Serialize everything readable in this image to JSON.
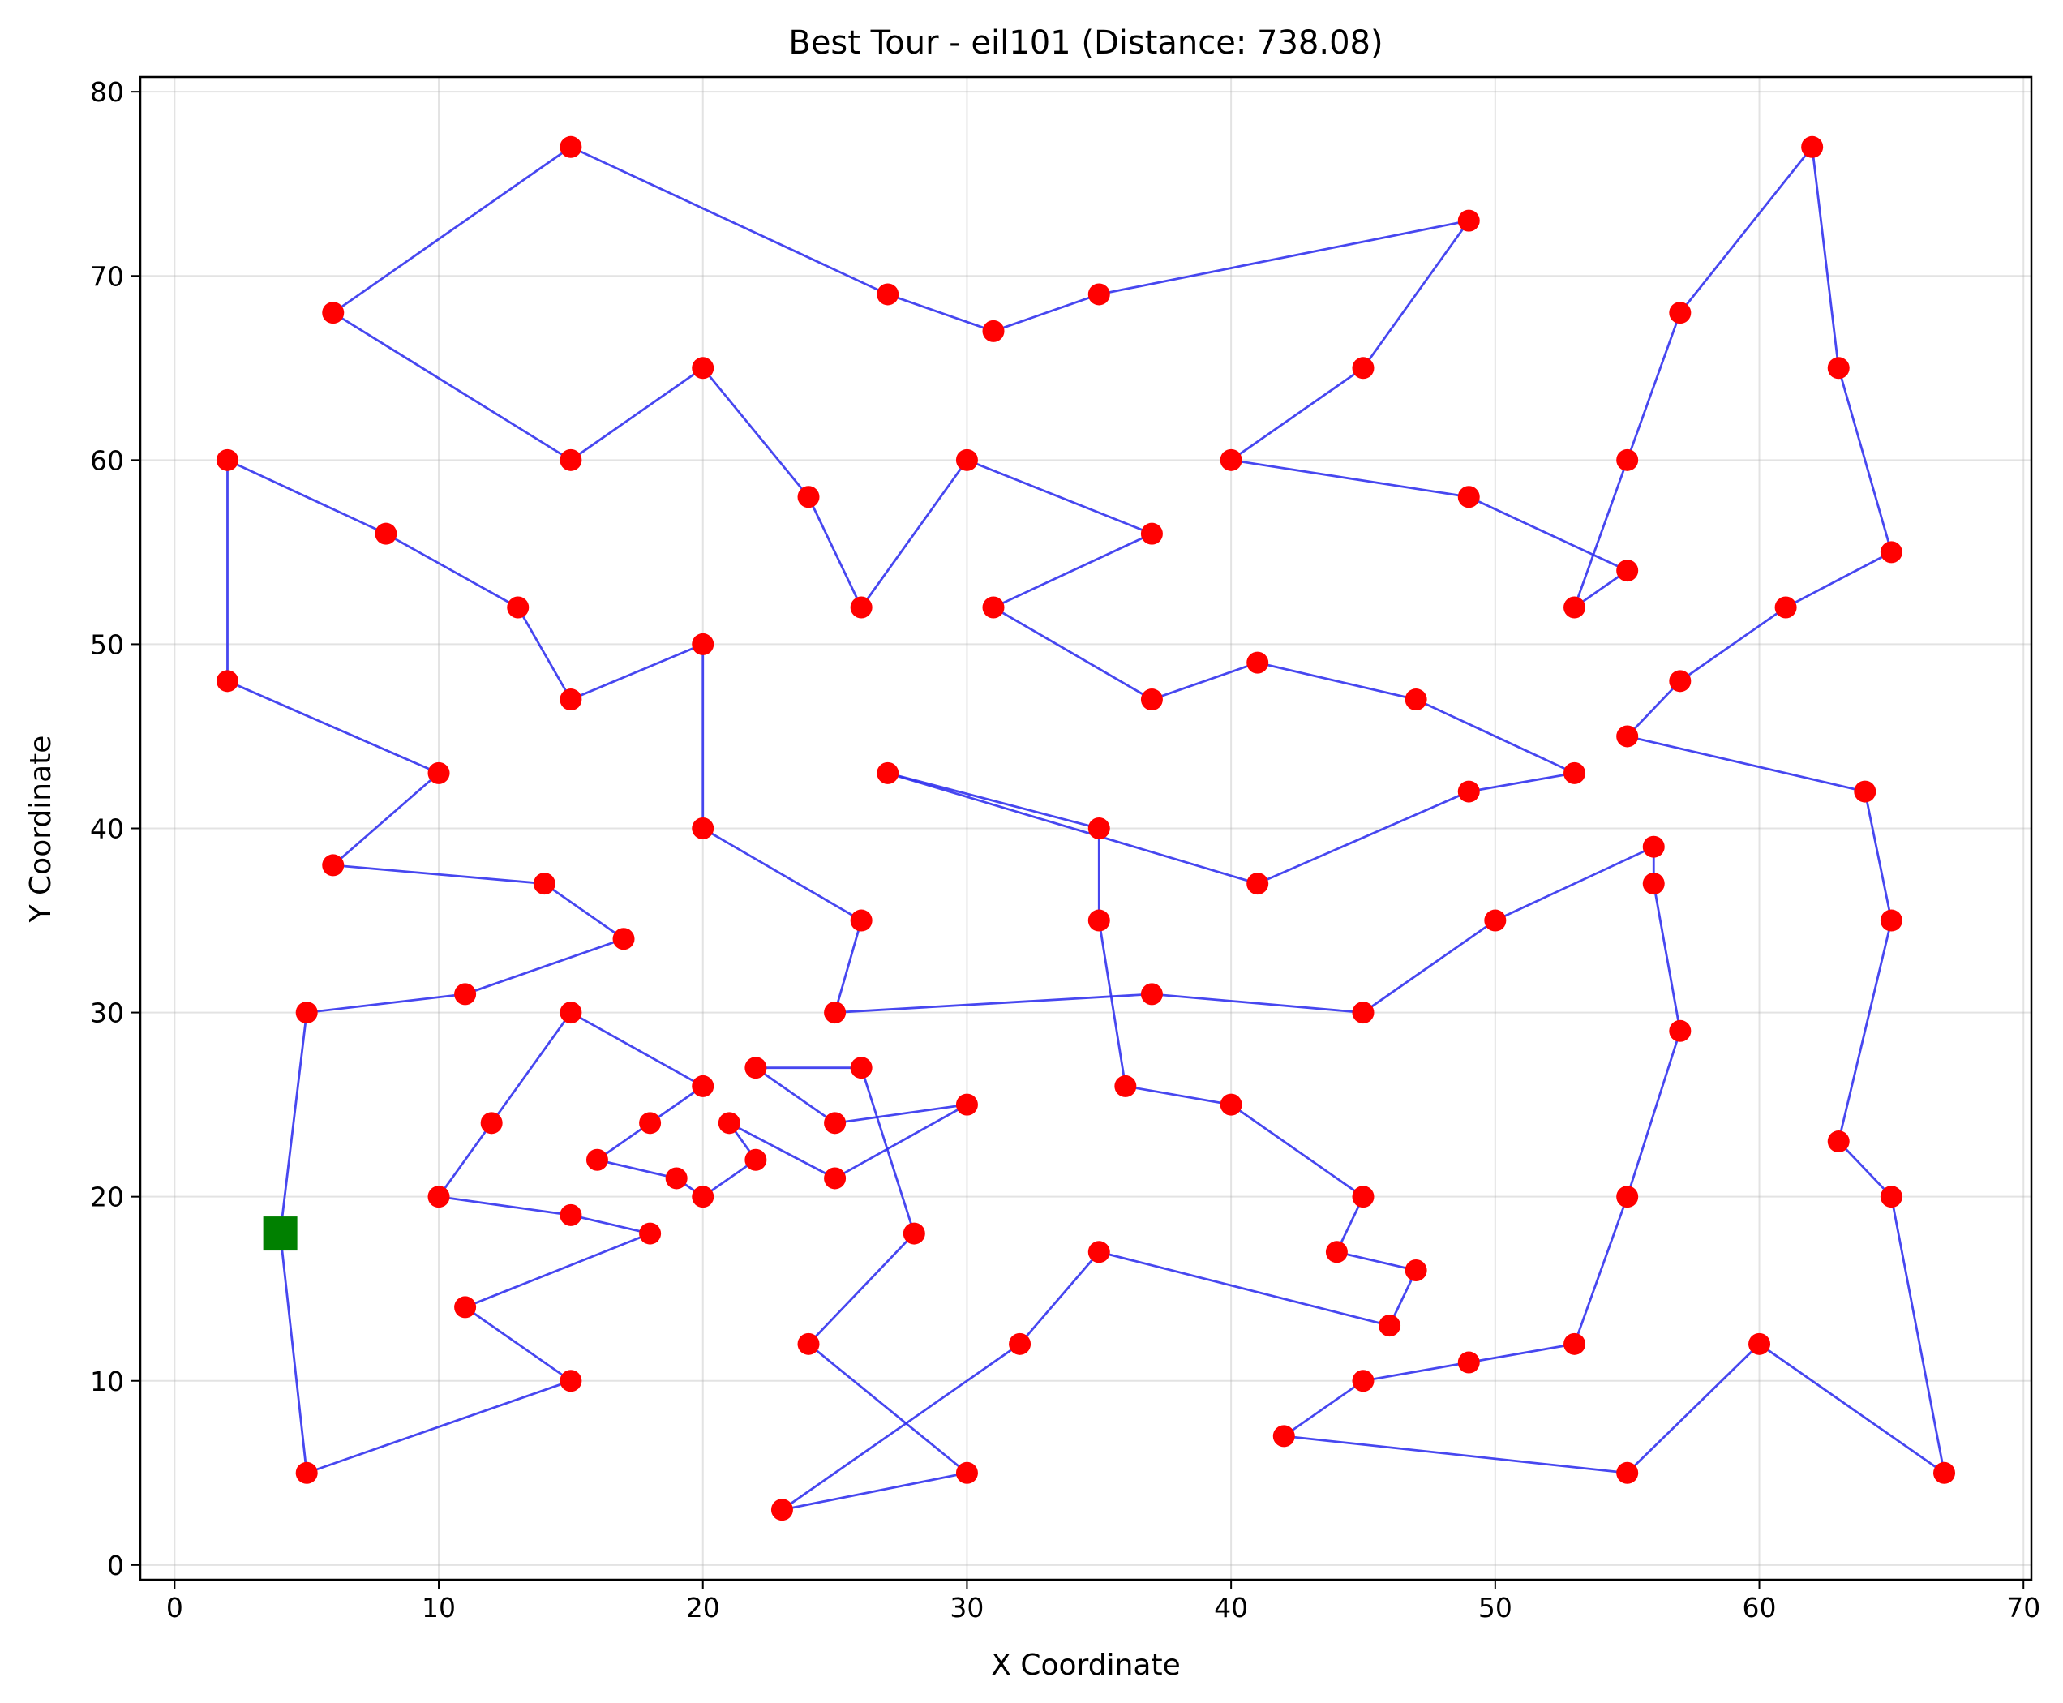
{
  "chart_data": {
    "type": "scatter",
    "title": "Best Tour - eil101 (Distance: 738.08)",
    "xlabel": "X Coordinate",
    "ylabel": "Y Coordinate",
    "xlim": [
      -1.3,
      70.3
    ],
    "ylim": [
      -0.8,
      80.8
    ],
    "xticks": [
      0,
      10,
      20,
      30,
      40,
      50,
      60,
      70
    ],
    "yticks": [
      0,
      10,
      20,
      30,
      40,
      50,
      60,
      70,
      80
    ],
    "grid": true,
    "colors": {
      "line": "#3333ee",
      "point": "#ff0000",
      "start": "#008000"
    },
    "start": {
      "name": "start city",
      "x": 4,
      "y": 18
    },
    "tour": [
      [
        4,
        18
      ],
      [
        5,
        30
      ],
      [
        11,
        31
      ],
      [
        17,
        34
      ],
      [
        14,
        37
      ],
      [
        6,
        38
      ],
      [
        10,
        43
      ],
      [
        2,
        48
      ],
      [
        2,
        60
      ],
      [
        8,
        56
      ],
      [
        13,
        52
      ],
      [
        15,
        47
      ],
      [
        20,
        50
      ],
      [
        20,
        40
      ],
      [
        26,
        35
      ],
      [
        25,
        30
      ],
      [
        37,
        31
      ],
      [
        45,
        30
      ],
      [
        50,
        35
      ],
      [
        56,
        39
      ],
      [
        56,
        37
      ],
      [
        57,
        29
      ],
      [
        55,
        20
      ],
      [
        53,
        12
      ],
      [
        49,
        11
      ],
      [
        45,
        10
      ],
      [
        42,
        7
      ],
      [
        55,
        5
      ],
      [
        60,
        12
      ],
      [
        67,
        5
      ],
      [
        65,
        20
      ],
      [
        63,
        23
      ],
      [
        65,
        35
      ],
      [
        64,
        42
      ],
      [
        55,
        45
      ],
      [
        57,
        48
      ],
      [
        61,
        52
      ],
      [
        65,
        55
      ],
      [
        63,
        65
      ],
      [
        62,
        77
      ],
      [
        57,
        68
      ],
      [
        55,
        60
      ],
      [
        53,
        52
      ],
      [
        55,
        54
      ],
      [
        49,
        58
      ],
      [
        40,
        60
      ],
      [
        45,
        65
      ],
      [
        49,
        73
      ],
      [
        35,
        69
      ],
      [
        31,
        67
      ],
      [
        27,
        69
      ],
      [
        15,
        77
      ],
      [
        6,
        68
      ],
      [
        15,
        60
      ],
      [
        20,
        65
      ],
      [
        24,
        58
      ],
      [
        26,
        52
      ],
      [
        30,
        60
      ],
      [
        37,
        56
      ],
      [
        31,
        52
      ],
      [
        37,
        47
      ],
      [
        41,
        49
      ],
      [
        47,
        47
      ],
      [
        53,
        43
      ],
      [
        49,
        42
      ],
      [
        41,
        37
      ],
      [
        27,
        43
      ],
      [
        35,
        40
      ],
      [
        35,
        35
      ],
      [
        36,
        26
      ],
      [
        40,
        25
      ],
      [
        45,
        20
      ],
      [
        44,
        17
      ],
      [
        47,
        16
      ],
      [
        46,
        13
      ],
      [
        35,
        17
      ],
      [
        32,
        12
      ],
      [
        23,
        3
      ],
      [
        30,
        5
      ],
      [
        24,
        12
      ],
      [
        28,
        18
      ],
      [
        26,
        27
      ],
      [
        22,
        27
      ],
      [
        25,
        24
      ],
      [
        30,
        25
      ],
      [
        25,
        21
      ],
      [
        21,
        24
      ],
      [
        22,
        22
      ],
      [
        20,
        20
      ],
      [
        19,
        21
      ],
      [
        16,
        22
      ],
      [
        18,
        24
      ],
      [
        20,
        26
      ],
      [
        15,
        30
      ],
      [
        12,
        24
      ],
      [
        10,
        20
      ],
      [
        15,
        19
      ],
      [
        18,
        18
      ],
      [
        11,
        14
      ],
      [
        15,
        10
      ],
      [
        5,
        5
      ],
      [
        4,
        18
      ]
    ]
  }
}
